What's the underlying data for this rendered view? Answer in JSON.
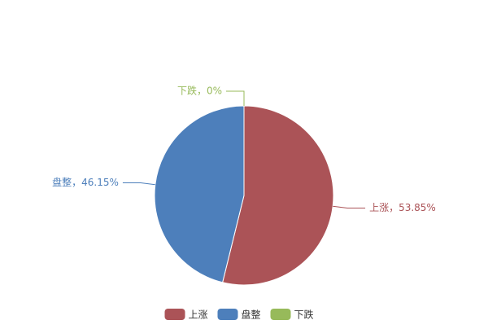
{
  "chart_data": {
    "type": "pie",
    "categories": [
      "上涨",
      "盘整",
      "下跌"
    ],
    "values": [
      53.85,
      46.15,
      0
    ],
    "value_labels": [
      "上涨，53.85%",
      "盘整，46.15%",
      "下跌，0%"
    ],
    "colors": [
      "#ab5357",
      "#4d7fbb",
      "#97ba5a"
    ],
    "legend": "bottom"
  }
}
